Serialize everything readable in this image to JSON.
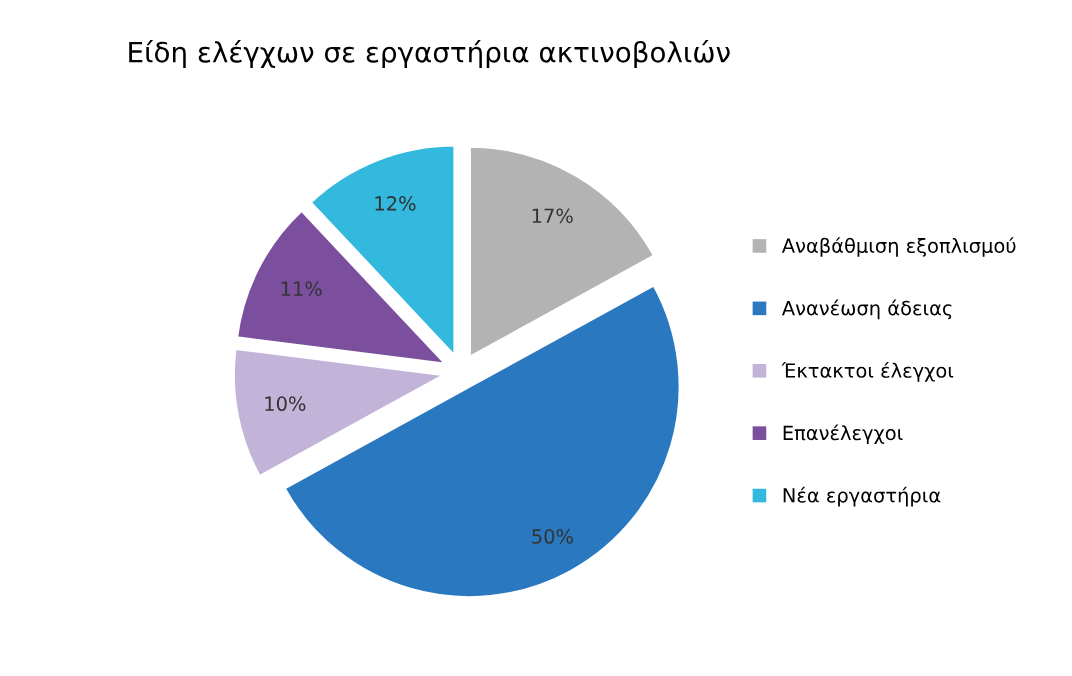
{
  "chart_data": {
    "type": "pie",
    "title": "Είδη ελέγχων σε εργαστήρια ακτινοβολιών",
    "categories": [
      "Αναβάθμιση εξοπλισμού",
      "Ανανέωση άδειας",
      "Έκτακτοι έλεγχοι",
      "Επανέλεγχοι",
      "Νέα εργαστήρια"
    ],
    "values": [
      17,
      50,
      10,
      11,
      12
    ],
    "colors": [
      "#b3b3b3",
      "#2a78c0",
      "#c2b3d9",
      "#7b4f9d",
      "#33b8de"
    ],
    "value_labels": [
      "17%",
      "50%",
      "10%",
      "11%",
      "12%"
    ],
    "legend": "right"
  }
}
